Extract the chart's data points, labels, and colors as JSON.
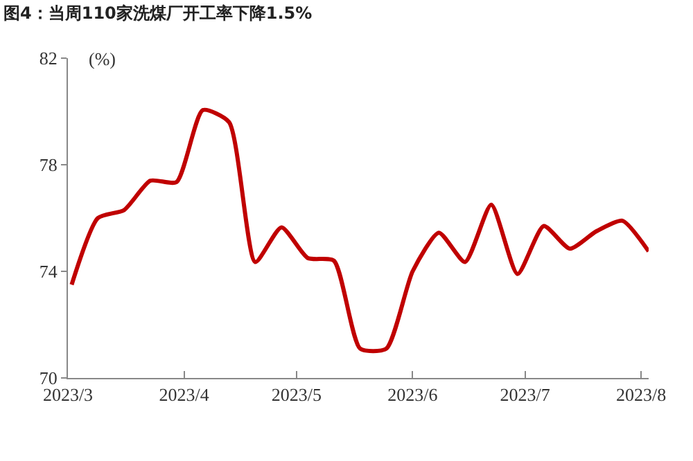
{
  "chart_data": {
    "type": "line",
    "title": "图4：当周110家洗煤厂开工率下降1.5%",
    "ylabel": "(%)",
    "x": [
      "2023-03-02",
      "2023-03-09",
      "2023-03-16",
      "2023-03-23",
      "2023-03-30",
      "2023-04-06",
      "2023-04-13",
      "2023-04-20",
      "2023-04-27",
      "2023-05-04",
      "2023-05-11",
      "2023-05-18",
      "2023-05-25",
      "2023-06-01",
      "2023-06-08",
      "2023-06-15",
      "2023-06-22",
      "2023-06-29",
      "2023-07-06",
      "2023-07-13",
      "2023-07-20",
      "2023-07-27",
      "2023-08-03"
    ],
    "series": [
      {
        "color": "#c00000",
        "values": [
          73.5,
          76.0,
          76.3,
          77.4,
          77.35,
          80.05,
          79.6,
          74.35,
          75.65,
          74.5,
          74.4,
          71.1,
          71.1,
          74.0,
          75.45,
          74.35,
          76.5,
          73.9,
          75.7,
          74.85,
          75.5,
          75.9,
          74.75
        ]
      }
    ],
    "xlim": [
      "2023-03-01",
      "2023-08-03"
    ],
    "xticks": [
      {
        "value": "2023-03-01",
        "label": "2023/3"
      },
      {
        "value": "2023-04-01",
        "label": "2023/4"
      },
      {
        "value": "2023-05-01",
        "label": "2023/5"
      },
      {
        "value": "2023-06-01",
        "label": "2023/6"
      },
      {
        "value": "2023-07-01",
        "label": "2023/7"
      },
      {
        "value": "2023-08-01",
        "label": "2023/8"
      }
    ],
    "ylim": [
      70,
      82
    ],
    "yticks": [
      70,
      74,
      78,
      82
    ],
    "marker": "none",
    "line_style": "solid"
  }
}
